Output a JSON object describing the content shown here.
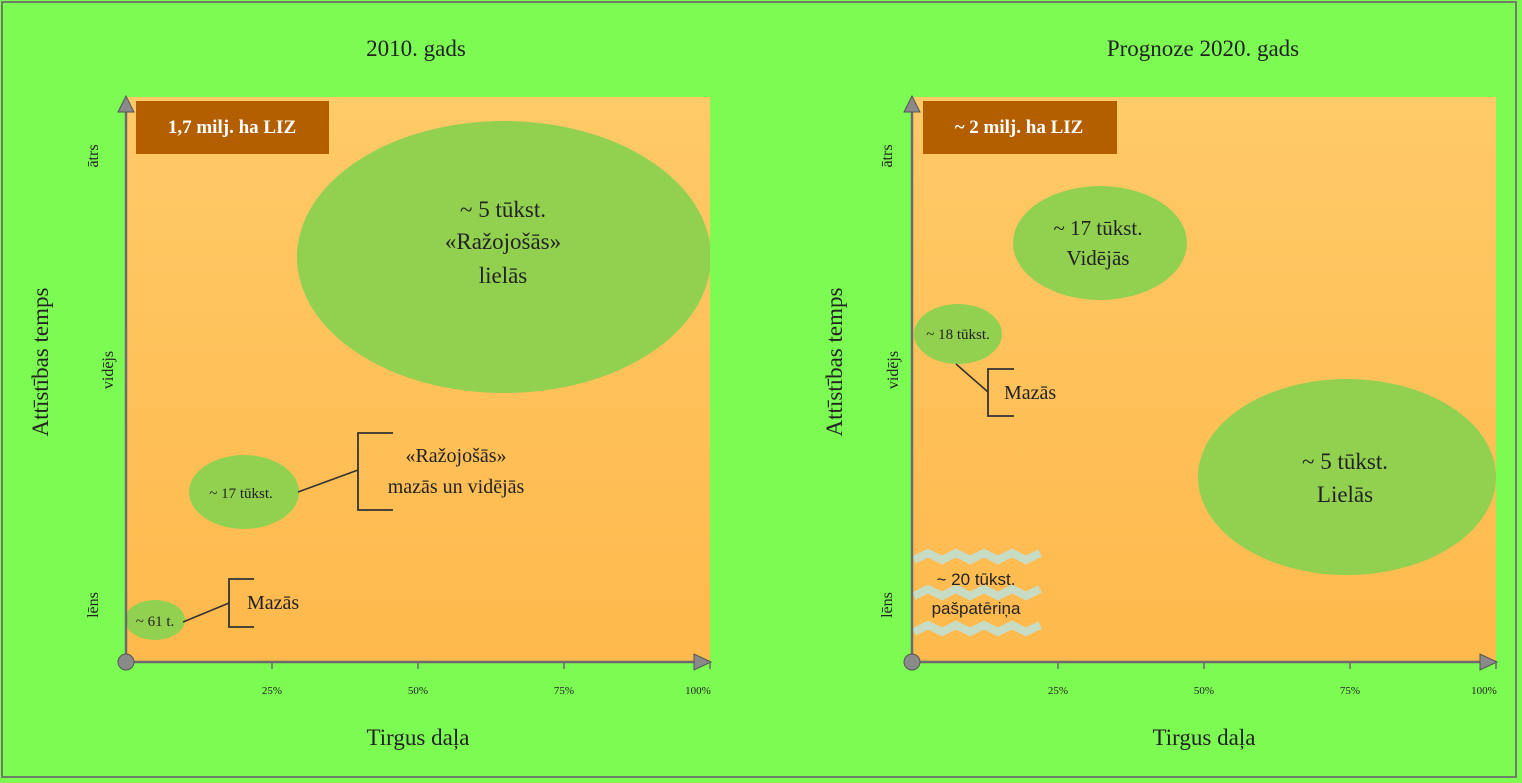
{
  "panels": [
    {
      "title": "2010. gads",
      "badge": "1,7 milj. ha LIZ",
      "ylabel": "Attīstības temps",
      "xlabel": "Tirgus daļa",
      "ylevels": [
        "ātrs",
        "vidējs",
        "lēns"
      ],
      "xticks": [
        "25%",
        "50%",
        "75%",
        "100%"
      ],
      "bubbles": [
        {
          "lines": [
            "~ 5 tūkst.",
            "«Ražojošās»",
            "lielās"
          ]
        },
        {
          "lines": [
            "~ 17 tūkst."
          ]
        },
        {
          "lines": [
            "~ 61 t."
          ]
        }
      ],
      "callouts": [
        {
          "lines": [
            "«Ražojošās»",
            "mazās un vidējās"
          ]
        },
        {
          "lines": [
            "Mazās"
          ]
        }
      ]
    },
    {
      "title": "Prognoze 2020. gads",
      "badge": "~ 2 milj. ha LIZ",
      "ylabel": "Attīstības temps",
      "xlabel": "Tirgus daļa",
      "ylevels": [
        "ātrs",
        "vidējs",
        "lēns"
      ],
      "xticks": [
        "25%",
        "50%",
        "75%",
        "100%"
      ],
      "bubbles": [
        {
          "lines": [
            "~ 17 tūkst.",
            "Vidējās"
          ]
        },
        {
          "lines": [
            "~ 18 tūkst."
          ]
        },
        {
          "lines": [
            "~ 5 tūkst.",
            "Lielās"
          ]
        }
      ],
      "callouts": [
        {
          "lines": [
            "Mazās"
          ]
        }
      ],
      "wave_box": {
        "lines": [
          "~ 20 tūkst.",
          "pašpatēriņa"
        ]
      }
    }
  ],
  "colors": {
    "background": "#7cfc52",
    "plot_top": "#ffc966",
    "plot_bottom": "#ffb84d",
    "bubble": "#92d050",
    "badge": "#b35f00",
    "wave": "#c8dfc6"
  }
}
